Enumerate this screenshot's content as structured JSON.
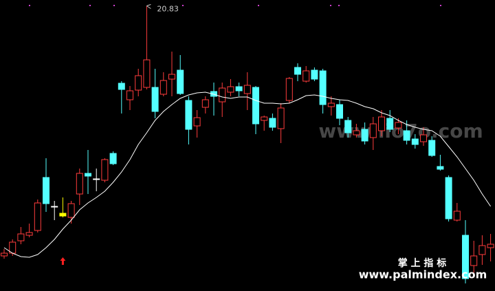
{
  "chart_data": {
    "type": "candlestick",
    "ylim": [
      12.54,
      21.0
    ],
    "up_color": "#ff3c3c",
    "down_color": "#54ffff",
    "flat_color": "#ffffff",
    "highlight_index": 7,
    "highlight_color": "#ffff00",
    "open": [
      13.56,
      13.64,
      14.0,
      14.16,
      14.3,
      15.84,
      15.0,
      14.72,
      14.68,
      15.36,
      15.96,
      15.8,
      15.76,
      16.54,
      18.58,
      18.1,
      18.38,
      18.46,
      18.46,
      18.26,
      18.7,
      18.96,
      18.08,
      17.34,
      17.88,
      18.34,
      18.04,
      18.32,
      18.48,
      18.28,
      18.46,
      17.5,
      17.56,
      17.26,
      18.08,
      19.04,
      18.64,
      18.96,
      18.94,
      17.9,
      17.96,
      17.5,
      17.08,
      17.24,
      17.0,
      17.2,
      17.56,
      17.28,
      17.2,
      16.96,
      16.88,
      16.92,
      16.16,
      15.84,
      14.6,
      14.16,
      13.28,
      13.6,
      13.8
    ],
    "close": [
      13.64,
      13.96,
      14.2,
      14.24,
      15.1,
      15.08,
      15.0,
      14.8,
      15.08,
      15.96,
      15.88,
      15.8,
      16.36,
      16.24,
      18.4,
      18.36,
      18.8,
      19.26,
      17.76,
      18.66,
      18.84,
      18.28,
      17.24,
      17.58,
      18.1,
      18.2,
      18.44,
      18.48,
      18.36,
      18.52,
      17.4,
      17.6,
      17.3,
      17.86,
      18.72,
      18.84,
      18.94,
      18.7,
      17.96,
      18.0,
      17.56,
      17.14,
      17.2,
      16.9,
      17.4,
      17.6,
      17.24,
      17.44,
      16.92,
      16.8,
      17.08,
      16.48,
      16.08,
      14.64,
      14.86,
      12.9,
      13.56,
      13.86,
      13.9
    ],
    "high": [
      13.76,
      14.04,
      14.4,
      14.5,
      15.2,
      16.4,
      15.16,
      15.26,
      15.16,
      16.1,
      16.64,
      16.1,
      16.4,
      16.6,
      18.64,
      18.5,
      19.0,
      20.83,
      19.0,
      18.9,
      19.5,
      19.4,
      18.2,
      17.8,
      18.2,
      18.6,
      18.6,
      18.7,
      18.6,
      18.9,
      18.5,
      17.64,
      17.7,
      18.0,
      18.76,
      19.16,
      19.08,
      19.04,
      19.0,
      18.2,
      18.1,
      17.6,
      17.4,
      17.44,
      17.6,
      17.8,
      17.8,
      17.56,
      17.5,
      17.1,
      17.3,
      17.04,
      16.5,
      15.9,
      15.1,
      14.6,
      14.0,
      14.16,
      14.2
    ],
    "low": [
      13.48,
      13.56,
      13.9,
      14.1,
      14.24,
      14.84,
      14.6,
      14.68,
      14.5,
      15.04,
      15.36,
      15.44,
      15.7,
      16.2,
      17.7,
      17.8,
      18.2,
      18.4,
      17.56,
      18.2,
      18.2,
      18.24,
      16.8,
      17.0,
      17.7,
      17.64,
      17.6,
      18.2,
      18.2,
      17.8,
      17.1,
      17.2,
      17.2,
      16.84,
      18.0,
      18.64,
      18.6,
      18.64,
      17.7,
      17.64,
      17.36,
      17.0,
      17.0,
      16.8,
      16.64,
      17.04,
      17.16,
      17.1,
      16.8,
      16.68,
      16.76,
      16.44,
      16.04,
      14.56,
      14.56,
      12.76,
      13.0,
      13.3,
      13.4
    ],
    "ma": {
      "color": "#ffffff",
      "values": [
        13.8,
        13.64,
        13.54,
        13.52,
        13.6,
        13.8,
        14.04,
        14.34,
        14.6,
        14.9,
        15.1,
        15.26,
        15.44,
        15.7,
        16.0,
        16.36,
        16.8,
        17.14,
        17.5,
        17.76,
        17.96,
        18.14,
        18.24,
        18.3,
        18.32,
        18.26,
        18.18,
        18.14,
        18.18,
        18.18,
        18.08,
        18.0,
        18.0,
        17.98,
        18.0,
        18.1,
        18.22,
        18.24,
        18.2,
        18.14,
        18.1,
        18.08,
        18.0,
        17.9,
        17.84,
        17.72,
        17.64,
        17.5,
        17.38,
        17.3,
        17.24,
        17.2,
        17.04,
        16.74,
        16.44,
        16.1,
        15.76,
        15.36,
        15.0
      ]
    },
    "watermark": "www.iio7o.com",
    "brand": "掌 上 指 标",
    "site": "www.palmindex.com"
  }
}
